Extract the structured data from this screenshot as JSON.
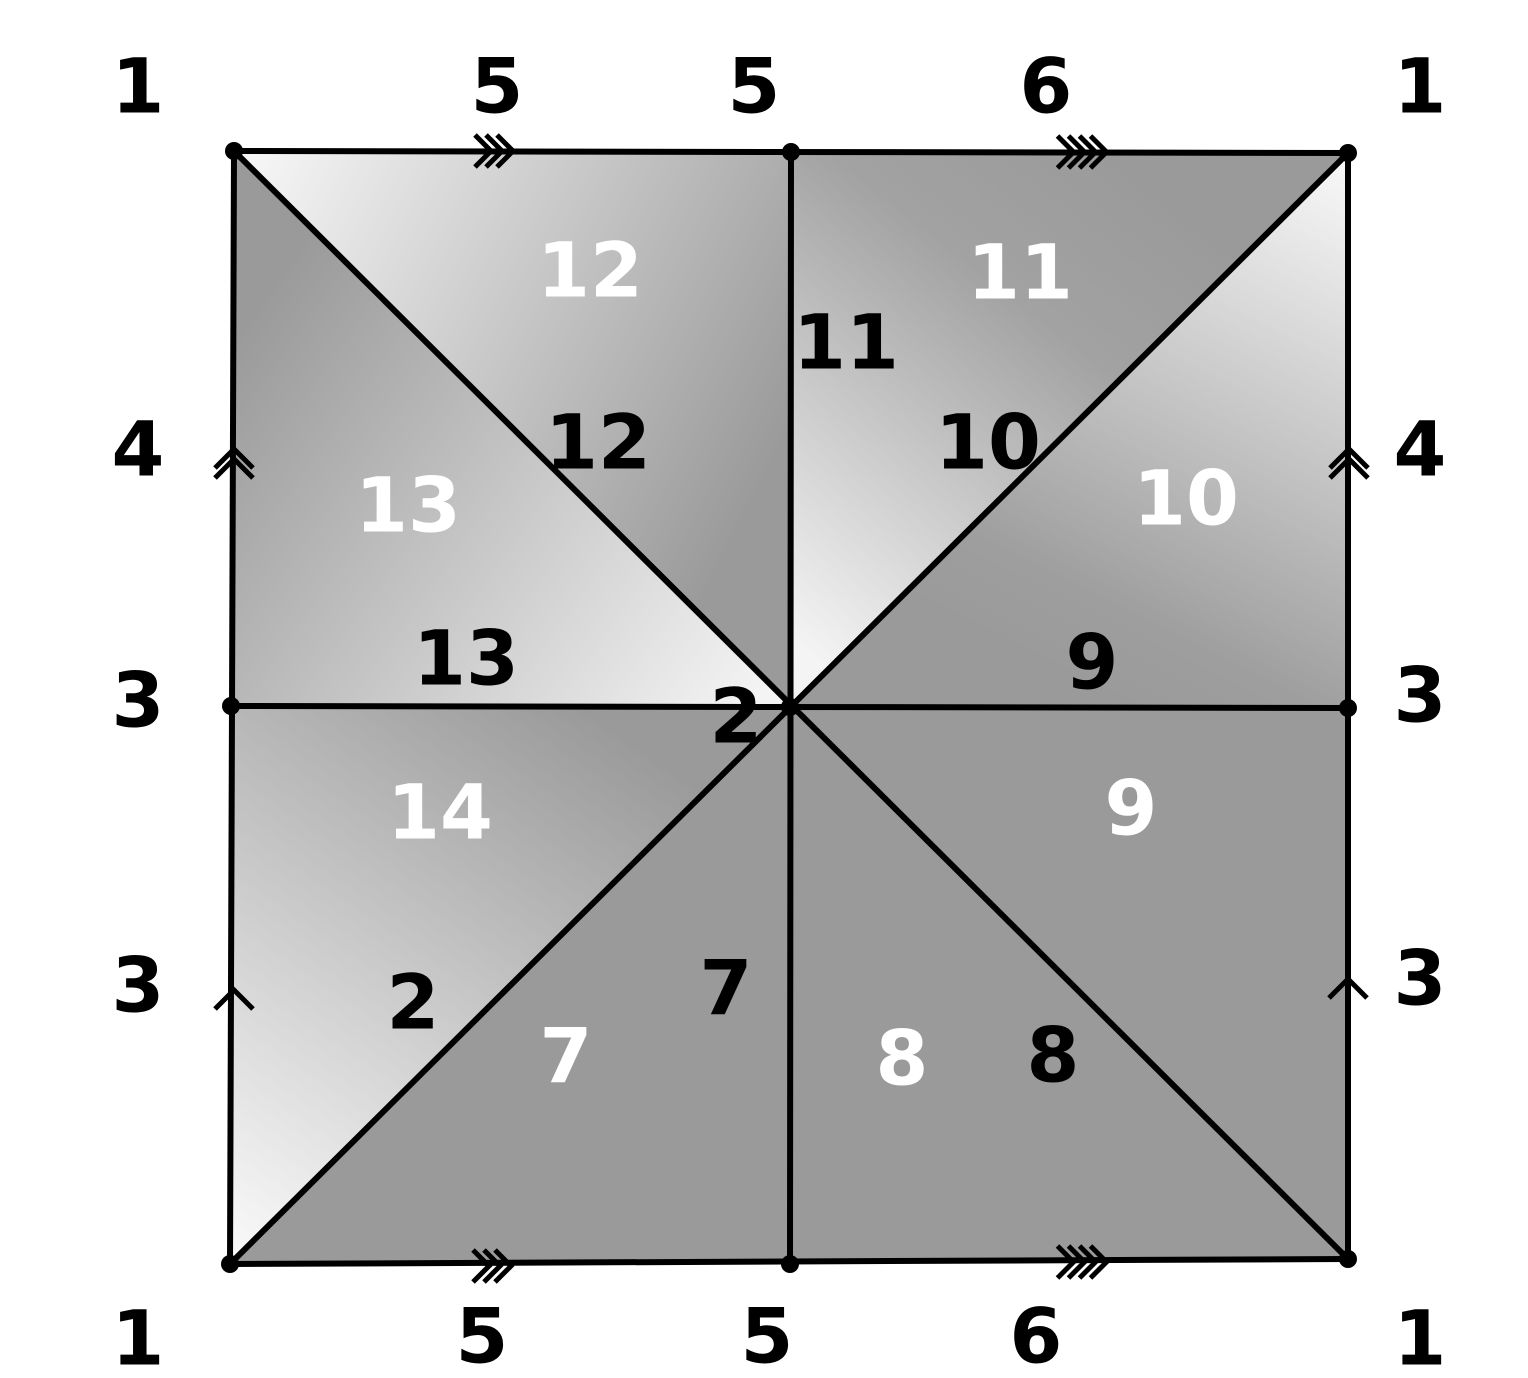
{
  "colors": {
    "background": "#ffffff",
    "stroke": "#000000",
    "dark_fill": "#9a9a9a",
    "light_fill": "#f8f8f8",
    "white_label": "#ffffff",
    "black_label": "#000000"
  },
  "corner_labels": [
    "1",
    "1",
    "1",
    "1"
  ],
  "top_edge_labels": [
    "5",
    "5",
    "6"
  ],
  "bottom_edge_labels": [
    "5",
    "5",
    "6"
  ],
  "left_edge_labels": [
    "4",
    "3",
    "3"
  ],
  "right_edge_labels": [
    "4",
    "3",
    "3"
  ],
  "region_labels_white": [
    "12",
    "11",
    "13",
    "10",
    "14",
    "9",
    "7",
    "8"
  ],
  "region_labels_black": [
    "11",
    "12",
    "10",
    "13",
    "9",
    "2",
    "7",
    "2",
    "8"
  ],
  "edge_arrow_marks": [
    {
      "edge": "top-left",
      "chevrons": 3
    },
    {
      "edge": "top-right",
      "chevrons": 4
    },
    {
      "edge": "bottom-left",
      "chevrons": 3
    },
    {
      "edge": "bottom-right",
      "chevrons": 4
    },
    {
      "edge": "left-upper",
      "chevrons": 2
    },
    {
      "edge": "left-lower",
      "chevrons": 1
    },
    {
      "edge": "right-upper",
      "chevrons": 2
    },
    {
      "edge": "right-lower",
      "chevrons": 1
    }
  ]
}
